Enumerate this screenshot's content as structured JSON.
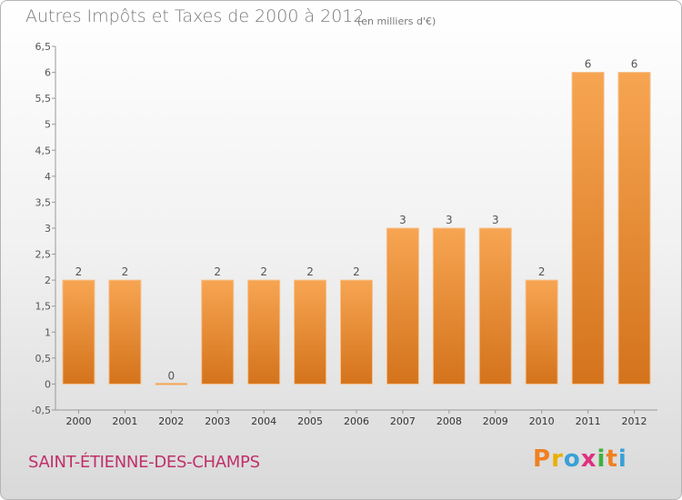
{
  "header": {
    "title": "Autres Impôts et Taxes de 2000 à 2012",
    "unit": "(en milliers d'€)"
  },
  "footer": {
    "commune": "SAINT-ÉTIENNE-DES-CHAMPS",
    "logo_text": "Proxiti",
    "logo_colors": [
      "#f08020",
      "#e8b000",
      "#39a0d8",
      "#e03080",
      "#40b040",
      "#f08020",
      "#39a0d8"
    ]
  },
  "colors": {
    "bar_light": "#f7a552",
    "bar_dark": "#d4731c",
    "title": "#7a7a7a",
    "commune": "#c0306a"
  },
  "chart_data": {
    "type": "bar",
    "title": "Autres Impôts et Taxes de 2000 à 2012",
    "xlabel": "",
    "ylabel": "",
    "categories": [
      "2000",
      "2001",
      "2002",
      "2003",
      "2004",
      "2005",
      "2006",
      "2007",
      "2008",
      "2009",
      "2010",
      "2011",
      "2012"
    ],
    "values": [
      2,
      2,
      0,
      2,
      2,
      2,
      2,
      3,
      3,
      3,
      2,
      6,
      6
    ],
    "data_labels": [
      "2",
      "2",
      "0",
      "2",
      "2",
      "2",
      "2",
      "3",
      "3",
      "3",
      "2",
      "6",
      "6"
    ],
    "ylim": [
      -0.5,
      6.5
    ],
    "yticks": [
      -0.5,
      0,
      0.5,
      1,
      1.5,
      2,
      2.5,
      3,
      3.5,
      4,
      4.5,
      5,
      5.5,
      6,
      6.5
    ],
    "ytick_labels": [
      "-0,5",
      "0",
      "0,5",
      "1",
      "1,5",
      "2",
      "2,5",
      "3",
      "3,5",
      "4",
      "4,5",
      "5",
      "5,5",
      "6",
      "6,5"
    ],
    "grid": false,
    "legend": "none"
  }
}
